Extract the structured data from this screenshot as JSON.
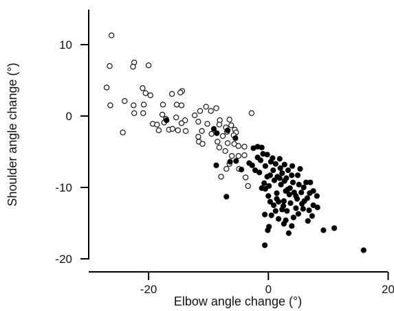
{
  "chart_data": {
    "type": "scatter",
    "title": "",
    "xlabel": "Elbow angle change (°)",
    "ylabel": "Shoulder angle change (°)",
    "xlim": [
      -30,
      20
    ],
    "ylim": [
      -20,
      15
    ],
    "xticks": [
      -20,
      0,
      20
    ],
    "yticks": [
      10,
      0,
      -10,
      -20
    ],
    "grid": false,
    "legend": "none",
    "series": [
      {
        "marker": "open-circle",
        "points": [
          [
            -26.2,
            11.3
          ],
          [
            -26.5,
            7.0
          ],
          [
            -26.4,
            1.5
          ],
          [
            -27.0,
            4.0
          ],
          [
            -22.4,
            7.5
          ],
          [
            -22.6,
            6.9
          ],
          [
            -20.0,
            7.1
          ],
          [
            -21.0,
            3.9
          ],
          [
            -20.5,
            3.2
          ],
          [
            -19.7,
            2.9
          ],
          [
            -19.3,
            -1.1
          ],
          [
            -24.0,
            2.1
          ],
          [
            -22.5,
            1.5
          ],
          [
            -22.4,
            0.4
          ],
          [
            -20.8,
            1.6
          ],
          [
            -24.3,
            -2.3
          ],
          [
            -20.9,
            0.4
          ],
          [
            -17.6,
            1.6
          ],
          [
            -18.6,
            -1.2
          ],
          [
            -18.3,
            -2.0
          ],
          [
            -17.4,
            -0.9
          ],
          [
            -16.1,
            3.1
          ],
          [
            -15.3,
            1.6
          ],
          [
            -14.4,
            3.5
          ],
          [
            -14.7,
            3.3
          ],
          [
            -14.5,
            1.5
          ],
          [
            -15.4,
            -0.2
          ],
          [
            -13.9,
            -0.6
          ],
          [
            -15.1,
            -2.0
          ],
          [
            -14.5,
            -1.0
          ],
          [
            -16.6,
            -1.9
          ],
          [
            -17.7,
            0.2
          ],
          [
            -17.1,
            -0.4
          ],
          [
            -16.0,
            -1.8
          ],
          [
            -13.8,
            -2.1
          ],
          [
            -12.3,
            0.1
          ],
          [
            -11.7,
            -0.8
          ],
          [
            -11.4,
            0.7
          ],
          [
            -11.1,
            -2.1
          ],
          [
            -10.4,
            1.3
          ],
          [
            -9.6,
            0.7
          ],
          [
            -11.7,
            -2.9
          ],
          [
            -11.6,
            -3.6
          ],
          [
            -11.0,
            -3.9
          ],
          [
            -10.2,
            -1.1
          ],
          [
            -9.5,
            -2.5
          ],
          [
            -8.7,
            1.1
          ],
          [
            -8.1,
            -0.6
          ],
          [
            -8.2,
            -1.2
          ],
          [
            -7.1,
            -1.6
          ],
          [
            -6.9,
            -2.2
          ],
          [
            -6.5,
            -0.5
          ],
          [
            -6.2,
            -1.3
          ],
          [
            -5.6,
            -1.9
          ],
          [
            -5.4,
            -2.3
          ],
          [
            -5.8,
            -2.7
          ],
          [
            -7.6,
            -2.8
          ],
          [
            -8.5,
            -3.6
          ],
          [
            -8.2,
            -4.4
          ],
          [
            -6.8,
            -3.8
          ],
          [
            -7.2,
            -4.9
          ],
          [
            -6.1,
            -5.6
          ],
          [
            -5.7,
            -3.9
          ],
          [
            -5.0,
            -4.2
          ],
          [
            -5.0,
            -5.6
          ],
          [
            -4.0,
            -4.3
          ],
          [
            -4.0,
            -5.5
          ],
          [
            -6.5,
            -6.7
          ],
          [
            -7.0,
            -7.4
          ],
          [
            -7.9,
            -8.5
          ],
          [
            -4.9,
            -7.4
          ],
          [
            -3.8,
            -8.6
          ],
          [
            -3.4,
            -9.8
          ],
          [
            -2.8,
            0.4
          ]
        ]
      },
      {
        "marker": "filled-circle",
        "points": [
          [
            -17.0,
            -0.6
          ],
          [
            -9.1,
            -1.8
          ],
          [
            -8.6,
            -2.4
          ],
          [
            -6.8,
            -2.0
          ],
          [
            -5.5,
            -3.1
          ],
          [
            -8.7,
            -6.9
          ],
          [
            -7.0,
            -11.3
          ],
          [
            -6.4,
            -6.4
          ],
          [
            -5.4,
            -6.3
          ],
          [
            -4.5,
            -7.5
          ],
          [
            -3.2,
            -6.6
          ],
          [
            -2.7,
            -6.9
          ],
          [
            -2.5,
            -4.5
          ],
          [
            -1.8,
            -4.3
          ],
          [
            -1.1,
            -4.4
          ],
          [
            -0.9,
            -5.3
          ],
          [
            -0.2,
            -5.4
          ],
          [
            -1.8,
            -5.8
          ],
          [
            -0.5,
            -7.0
          ],
          [
            0.4,
            -6.4
          ],
          [
            0.8,
            -7.6
          ],
          [
            1.2,
            -6.7
          ],
          [
            -0.2,
            -8.5
          ],
          [
            -1.5,
            -7.9
          ],
          [
            -0.7,
            -9.4
          ],
          [
            0.3,
            -8.3
          ],
          [
            -1.1,
            -10.1
          ],
          [
            -0.5,
            -10.2
          ],
          [
            1.5,
            -8.5
          ],
          [
            2.3,
            -8.0
          ],
          [
            2.7,
            -6.8
          ],
          [
            3.3,
            -7.6
          ],
          [
            3.9,
            -8.3
          ],
          [
            2.1,
            -9.6
          ],
          [
            1.4,
            -10.8
          ],
          [
            0.0,
            -11.2
          ],
          [
            0.3,
            -12.0
          ],
          [
            0.9,
            -12.5
          ],
          [
            1.7,
            -12.0
          ],
          [
            2.6,
            -11.9
          ],
          [
            2.9,
            -10.5
          ],
          [
            3.6,
            -10.1
          ],
          [
            4.1,
            -9.3
          ],
          [
            4.9,
            -8.3
          ],
          [
            5.3,
            -7.4
          ],
          [
            4.6,
            -11.2
          ],
          [
            5.9,
            -10.0
          ],
          [
            6.3,
            -9.3
          ],
          [
            7.0,
            -9.3
          ],
          [
            7.5,
            -10.5
          ],
          [
            6.5,
            -11.5
          ],
          [
            5.6,
            -12.3
          ],
          [
            4.6,
            -12.9
          ],
          [
            3.1,
            -13.3
          ],
          [
            2.3,
            -13.1
          ],
          [
            1.2,
            -13.3
          ],
          [
            0.5,
            -13.9
          ],
          [
            -0.6,
            -13.8
          ],
          [
            1.7,
            -14.4
          ],
          [
            2.9,
            -14.6
          ],
          [
            4.2,
            -14.2
          ],
          [
            5.0,
            -13.7
          ],
          [
            5.8,
            -13.0
          ],
          [
            6.8,
            -13.2
          ],
          [
            7.5,
            -12.5
          ],
          [
            8.1,
            -11.2
          ],
          [
            8.2,
            -12.8
          ],
          [
            7.3,
            -14.0
          ],
          [
            6.6,
            -14.7
          ],
          [
            9.2,
            -16.0
          ],
          [
            11.0,
            -15.7
          ],
          [
            2.6,
            -15.1
          ],
          [
            3.9,
            -15.4
          ],
          [
            0.1,
            -15.5
          ],
          [
            -0.1,
            -16.0
          ],
          [
            3.4,
            -16.4
          ],
          [
            -0.6,
            -18.1
          ],
          [
            15.9,
            -18.8
          ],
          [
            2.0,
            -7.3
          ],
          [
            2.7,
            -9.1
          ],
          [
            1.0,
            -9.0
          ],
          [
            3.5,
            -11.0
          ],
          [
            4.3,
            -10.7
          ],
          [
            5.1,
            -9.6
          ],
          [
            6.0,
            -11.9
          ],
          [
            -1.3,
            -6.2
          ],
          [
            0.7,
            -5.9
          ],
          [
            1.9,
            -6.0
          ],
          [
            3.0,
            -8.7
          ],
          [
            3.7,
            -12.2
          ],
          [
            4.8,
            -11.6
          ],
          [
            1.4,
            -11.6
          ],
          [
            2.5,
            -12.6
          ],
          [
            6.9,
            -10.8
          ],
          [
            5.5,
            -10.7
          ],
          [
            -2.2,
            -7.6
          ],
          [
            0.1,
            -9.8
          ],
          [
            3.2,
            -10.3
          ],
          [
            1.9,
            -8.7
          ],
          [
            4.0,
            -7.0
          ]
        ]
      }
    ]
  }
}
